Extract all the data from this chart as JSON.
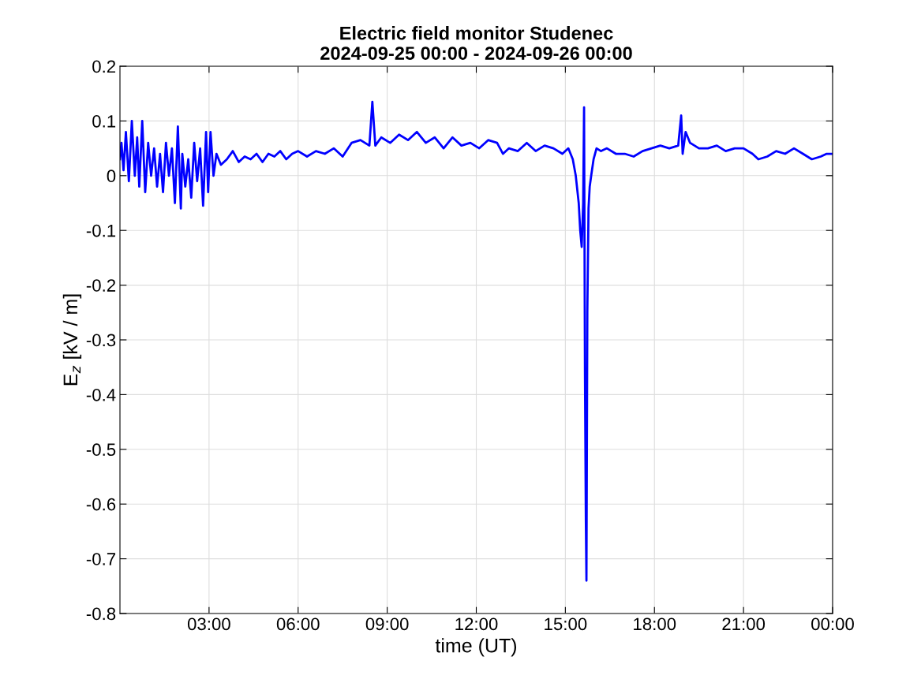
{
  "chart_data": {
    "type": "line",
    "title": "Electric field monitor Studenec\n2024-09-25 00:00 - 2024-09-26 00:00",
    "xlabel": "time (UT)",
    "ylabel": "E$_{z}$ [kV / m]",
    "x": [
      0,
      0.05,
      0.12,
      0.2,
      0.3,
      0.4,
      0.5,
      0.58,
      0.65,
      0.75,
      0.85,
      0.95,
      1.05,
      1.15,
      1.25,
      1.35,
      1.45,
      1.55,
      1.65,
      1.75,
      1.85,
      1.95,
      2.05,
      2.1,
      2.2,
      2.3,
      2.4,
      2.5,
      2.6,
      2.7,
      2.8,
      2.9,
      2.97,
      3.05,
      3.15,
      3.25,
      3.4,
      3.6,
      3.8,
      4.0,
      4.2,
      4.4,
      4.6,
      4.8,
      5.0,
      5.2,
      5.4,
      5.6,
      5.8,
      6.0,
      6.3,
      6.6,
      6.9,
      7.2,
      7.5,
      7.8,
      8.1,
      8.4,
      8.5,
      8.6,
      8.8,
      9.1,
      9.4,
      9.7,
      10.0,
      10.3,
      10.6,
      10.9,
      11.2,
      11.5,
      11.8,
      12.1,
      12.4,
      12.7,
      12.9,
      13.1,
      13.4,
      13.7,
      14.0,
      14.3,
      14.6,
      14.9,
      15.1,
      15.25,
      15.35,
      15.45,
      15.5,
      15.55,
      15.6,
      15.63,
      15.66,
      15.69,
      15.71,
      15.74,
      15.78,
      15.82,
      15.87,
      15.95,
      16.05,
      16.2,
      16.4,
      16.7,
      17.0,
      17.3,
      17.6,
      17.9,
      18.2,
      18.5,
      18.8,
      18.9,
      18.95,
      19.05,
      19.2,
      19.5,
      19.8,
      20.1,
      20.4,
      20.7,
      21.0,
      21.3,
      21.5,
      21.8,
      22.1,
      22.4,
      22.7,
      23.0,
      23.3,
      23.6,
      23.8,
      24.0
    ],
    "series": [
      {
        "color": "#0000ff",
        "values": [
          0.03,
          0.06,
          0.01,
          0.08,
          -0.01,
          0.1,
          0.0,
          0.07,
          -0.02,
          0.1,
          -0.03,
          0.06,
          0.0,
          0.05,
          -0.02,
          0.04,
          -0.03,
          0.06,
          0.0,
          0.05,
          -0.05,
          0.09,
          -0.06,
          0.04,
          -0.02,
          0.03,
          -0.04,
          0.06,
          -0.01,
          0.05,
          -0.055,
          0.08,
          -0.03,
          0.08,
          0.0,
          0.04,
          0.02,
          0.03,
          0.045,
          0.025,
          0.035,
          0.03,
          0.04,
          0.025,
          0.04,
          0.035,
          0.045,
          0.03,
          0.04,
          0.045,
          0.035,
          0.045,
          0.04,
          0.05,
          0.035,
          0.06,
          0.065,
          0.055,
          0.135,
          0.055,
          0.07,
          0.06,
          0.075,
          0.065,
          0.08,
          0.06,
          0.07,
          0.05,
          0.07,
          0.055,
          0.06,
          0.05,
          0.065,
          0.06,
          0.04,
          0.05,
          0.045,
          0.06,
          0.045,
          0.055,
          0.05,
          0.04,
          0.05,
          0.03,
          0.0,
          -0.05,
          -0.1,
          -0.13,
          -0.05,
          0.125,
          -0.36,
          -0.63,
          -0.74,
          -0.25,
          -0.06,
          -0.02,
          0.0,
          0.03,
          0.05,
          0.045,
          0.05,
          0.04,
          0.04,
          0.035,
          0.045,
          0.05,
          0.055,
          0.05,
          0.055,
          0.11,
          0.04,
          0.08,
          0.06,
          0.05,
          0.05,
          0.055,
          0.045,
          0.05,
          0.05,
          0.04,
          0.03,
          0.035,
          0.045,
          0.04,
          0.05,
          0.04,
          0.03,
          0.035,
          0.04,
          0.04
        ]
      }
    ],
    "xlim": [
      0,
      24
    ],
    "xticks": [
      {
        "value": 3,
        "label": "03:00"
      },
      {
        "value": 6,
        "label": "06:00"
      },
      {
        "value": 9,
        "label": "09:00"
      },
      {
        "value": 12,
        "label": "12:00"
      },
      {
        "value": 15,
        "label": "15:00"
      },
      {
        "value": 18,
        "label": "18:00"
      },
      {
        "value": 21,
        "label": "21:00"
      },
      {
        "value": 24,
        "label": "00:00"
      }
    ],
    "ylim": [
      -0.8,
      0.2
    ],
    "yticks": [
      -0.8,
      -0.7,
      -0.6,
      -0.5,
      -0.4,
      -0.3,
      -0.2,
      -0.1,
      0,
      0.1,
      0.2
    ],
    "grid": true,
    "legend": false,
    "line_style": "solid",
    "marker": "none"
  }
}
